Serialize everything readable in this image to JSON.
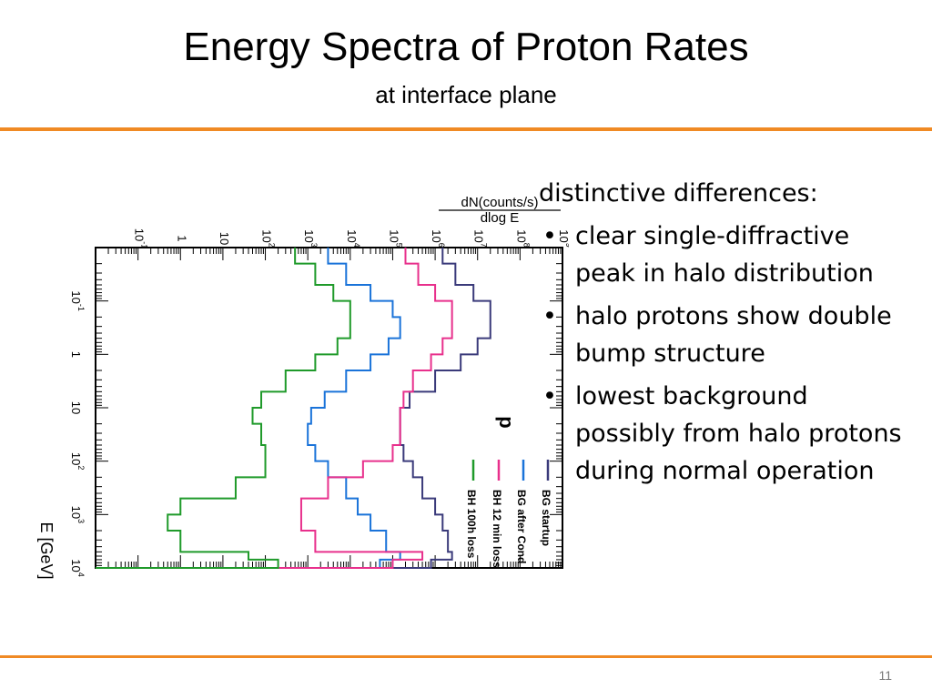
{
  "slide": {
    "title": "Energy Spectra of Proton Rates",
    "subtitle": "at interface plane",
    "page_number": "11",
    "accent_color": "#f08a24"
  },
  "bullets": {
    "intro": "distinctive differences:",
    "items": [
      "clear single-diffractive peak in halo distribution",
      "halo protons show double bump structure",
      "lowest background possibly from halo protons during normal operation"
    ]
  },
  "chart_data": {
    "type": "line",
    "orientation": "rotated 90° clockwise",
    "particle_label": "p",
    "xlabel": "E [GeV]",
    "ylabel_numerator": "dN(counts/s)",
    "ylabel_denominator": "dlog E",
    "x_scale": "log",
    "y_scale": "log",
    "xlim": [
      0.01,
      10000
    ],
    "ylim": [
      0.01,
      1000000000
    ],
    "x_ticks": [
      {
        "base": "10",
        "exp": "-1",
        "value": 0.1
      },
      {
        "base": "1",
        "exp": "",
        "value": 1
      },
      {
        "base": "10",
        "exp": "",
        "value": 10
      },
      {
        "base": "10",
        "exp": "2",
        "value": 100
      },
      {
        "base": "10",
        "exp": "3",
        "value": 1000
      },
      {
        "base": "10",
        "exp": "4",
        "value": 10000
      }
    ],
    "y_ticks": [
      {
        "base": "10",
        "exp": "-1",
        "value": 0.1
      },
      {
        "base": "1",
        "exp": "",
        "value": 1
      },
      {
        "base": "10",
        "exp": "",
        "value": 10
      },
      {
        "base": "10",
        "exp": "2",
        "value": 100
      },
      {
        "base": "10",
        "exp": "3",
        "value": 1000
      },
      {
        "base": "10",
        "exp": "4",
        "value": 10000
      },
      {
        "base": "10",
        "exp": "5",
        "value": 100000
      },
      {
        "base": "10",
        "exp": "6",
        "value": 1000000
      },
      {
        "base": "10",
        "exp": "7",
        "value": 10000000
      },
      {
        "base": "10",
        "exp": "8",
        "value": 100000000
      },
      {
        "base": "10",
        "exp": "9",
        "value": 1000000000
      }
    ],
    "legend_position": "bottom-right",
    "series": [
      {
        "name": "BG startup",
        "color": "#3a3a7a",
        "x": [
          0.01,
          0.02,
          0.05,
          0.1,
          0.2,
          0.5,
          1,
          2,
          5,
          10,
          20,
          50,
          100,
          200,
          500,
          1000,
          2000,
          5000,
          7000,
          10000
        ],
        "y": [
          1500000,
          3000000,
          8000000,
          20000000,
          20000000,
          10000000,
          4000000,
          1000000,
          250000,
          150000,
          150000,
          180000,
          300000,
          500000,
          1000000,
          1500000,
          2000000,
          2500000,
          800000,
          0.01
        ]
      },
      {
        "name": "BG after Cond",
        "color": "#1a73d9",
        "x": [
          0.01,
          0.02,
          0.05,
          0.1,
          0.2,
          0.5,
          1,
          2,
          5,
          10,
          20,
          50,
          100,
          200,
          500,
          1000,
          2000,
          5000,
          7000,
          10000
        ],
        "y": [
          3000,
          8000,
          30000,
          100000,
          150000,
          80000,
          30000,
          8000,
          2500,
          1200,
          1000,
          1500,
          3000,
          8000,
          15000,
          30000,
          70000,
          150000,
          50000,
          0.01
        ]
      },
      {
        "name": "BH 12 min loss",
        "color": "#e8308c",
        "x": [
          0.01,
          0.02,
          0.05,
          0.1,
          0.2,
          0.5,
          1,
          2,
          5,
          10,
          20,
          50,
          100,
          200,
          500,
          1000,
          2000,
          5000,
          7000,
          10000
        ],
        "y": [
          200000,
          400000,
          1000000,
          2500000,
          2500000,
          1500000,
          800000,
          300000,
          180000,
          150000,
          150000,
          100000,
          20000,
          3000,
          700,
          700,
          1500,
          500000,
          100000,
          0.01
        ]
      },
      {
        "name": "BH 100h loss",
        "color": "#1f9a2a",
        "x": [
          0.01,
          0.02,
          0.05,
          0.1,
          0.2,
          0.5,
          1,
          2,
          5,
          10,
          20,
          50,
          100,
          200,
          500,
          1000,
          2000,
          5000,
          7000,
          10000
        ],
        "y": [
          500,
          1500,
          4000,
          10000,
          10000,
          5000,
          1500,
          300,
          80,
          50,
          80,
          100,
          100,
          20,
          1,
          0.5,
          1,
          40,
          200,
          0.01
        ]
      }
    ]
  }
}
